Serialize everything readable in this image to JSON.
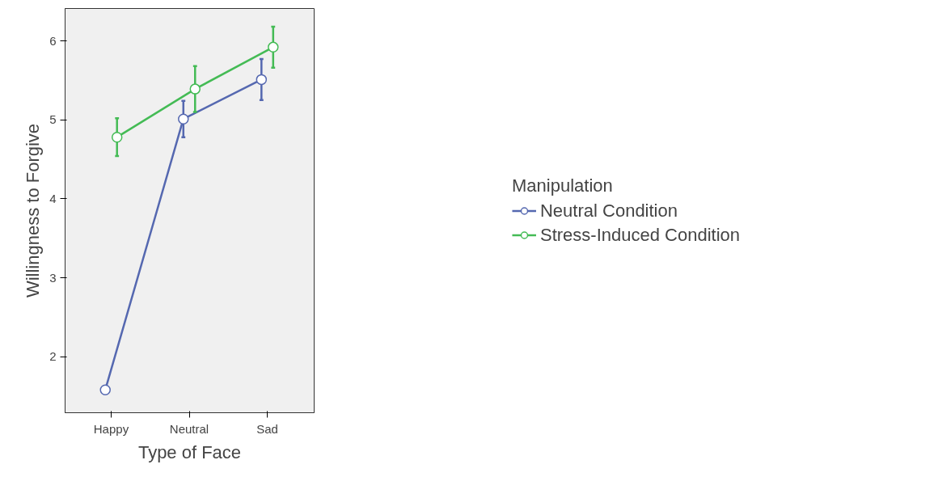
{
  "chart_data": {
    "type": "line",
    "xlabel": "Type of Face",
    "ylabel": "Willingness to Forgive",
    "legend_title": "Manipulation",
    "categories": [
      "Happy",
      "Neutral",
      "Sad"
    ],
    "series": [
      {
        "name": "Neutral Condition",
        "color": "#5568b0",
        "values": [
          1.58,
          5.01,
          5.51
        ],
        "errors": [
          [
            1.53,
            1.62
          ],
          [
            4.78,
            5.24
          ],
          [
            5.25,
            5.77
          ]
        ]
      },
      {
        "name": "Stress-Induced Condition",
        "color": "#44bb55",
        "values": [
          4.78,
          5.39,
          5.92
        ],
        "errors": [
          [
            4.54,
            5.02
          ],
          [
            5.1,
            5.68
          ],
          [
            5.66,
            6.18
          ]
        ]
      }
    ],
    "ylim": [
      1.29,
      6.41
    ],
    "yticks": [
      2,
      3,
      4,
      5,
      6
    ],
    "grid": false,
    "legend": "right",
    "marker": "circle",
    "line_style": "solid"
  }
}
